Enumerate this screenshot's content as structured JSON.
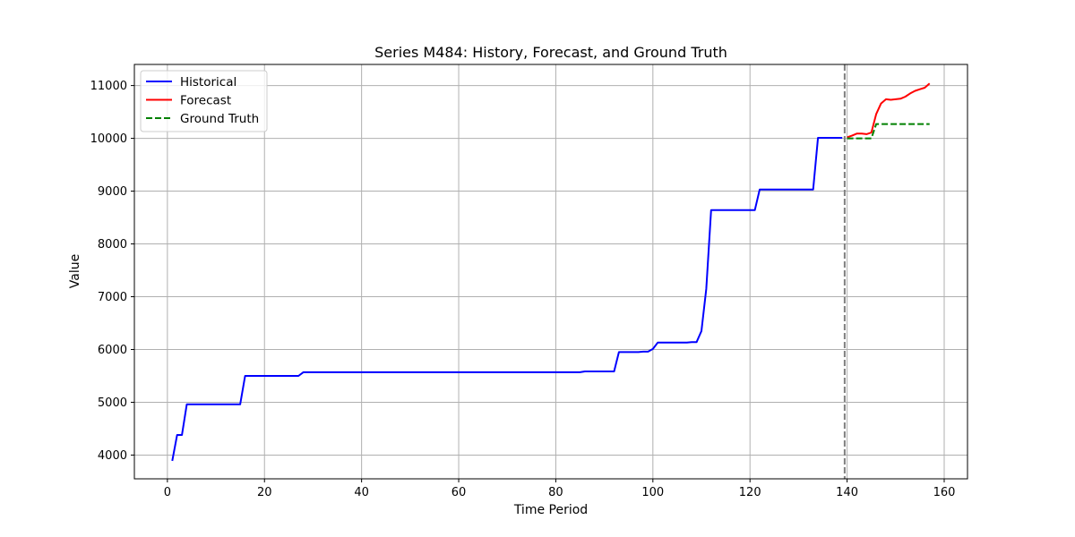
{
  "chart_data": {
    "type": "line",
    "title": "Series M484: History, Forecast, and Ground Truth",
    "xlabel": "Time Period",
    "ylabel": "Value",
    "xlim": [
      -6.8,
      164.8
    ],
    "ylim": [
      3550,
      11400
    ],
    "x_ticks": [
      0,
      20,
      40,
      60,
      80,
      100,
      120,
      140,
      160
    ],
    "y_ticks": [
      4000,
      5000,
      6000,
      7000,
      8000,
      9000,
      10000,
      11000
    ],
    "grid": true,
    "legend_position": "top-left",
    "forecast_start_marker": 139.5,
    "series": [
      {
        "name": "Historical",
        "color": "#0000ff",
        "style": "solid",
        "x": [
          1,
          2,
          3,
          4,
          15,
          16,
          27,
          28,
          85,
          86,
          92,
          93,
          97,
          98,
          99,
          100,
          101,
          107,
          108,
          109,
          110,
          111,
          112,
          121,
          122,
          133,
          134,
          139
        ],
        "y": [
          3890,
          4380,
          4380,
          4960,
          4960,
          5500,
          5500,
          5570,
          5570,
          5585,
          5585,
          5950,
          5950,
          5960,
          5960,
          6010,
          6130,
          6130,
          6140,
          6140,
          6350,
          7150,
          8640,
          8640,
          9030,
          9030,
          10010,
          10010
        ]
      },
      {
        "name": "Forecast",
        "color": "#ff0000",
        "style": "solid",
        "x": [
          140,
          141,
          142,
          143,
          144,
          145,
          146,
          147,
          148,
          149,
          150,
          151,
          152,
          153,
          154,
          155,
          156,
          157
        ],
        "y": [
          10020,
          10050,
          10090,
          10090,
          10080,
          10110,
          10460,
          10660,
          10740,
          10730,
          10740,
          10750,
          10790,
          10850,
          10900,
          10930,
          10960,
          11040
        ]
      },
      {
        "name": "Ground Truth",
        "color": "#008000",
        "style": "dashed",
        "x": [
          140,
          145,
          146,
          157
        ],
        "y": [
          10000,
          10000,
          10270,
          10270
        ]
      }
    ]
  }
}
